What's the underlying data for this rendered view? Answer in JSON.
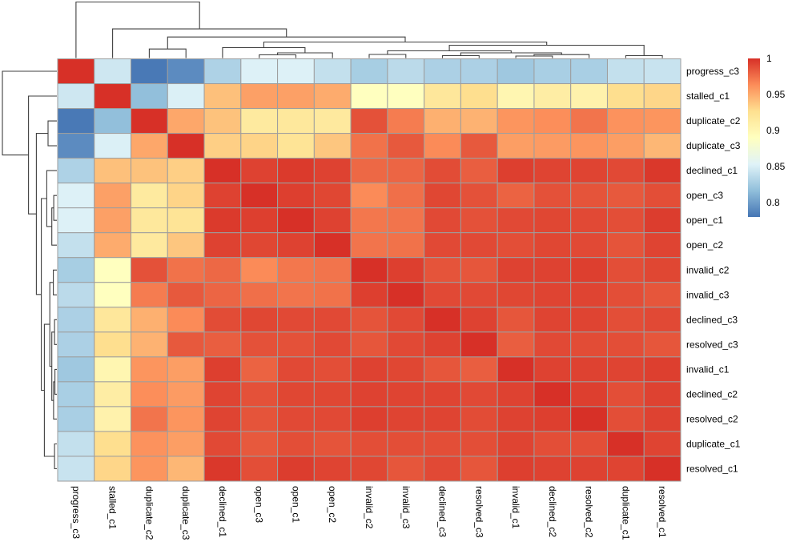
{
  "chart_data": {
    "type": "heatmap",
    "subtype": "clustered-correlation-heatmap",
    "title": "",
    "labels": [
      "progress_c3",
      "stalled_c1",
      "duplicate_c2",
      "duplicate_c3",
      "declined_c1",
      "open_c3",
      "open_c1",
      "open_c2",
      "invalid_c2",
      "invalid_c3",
      "declined_c3",
      "resolved_c3",
      "invalid_c1",
      "declined_c2",
      "resolved_c2",
      "duplicate_c1",
      "resolved_c1"
    ],
    "matrix": [
      [
        1.0,
        0.845,
        0.782,
        0.791,
        0.83,
        0.852,
        0.852,
        0.84,
        0.827,
        0.836,
        0.829,
        0.829,
        0.823,
        0.828,
        0.828,
        0.84,
        0.842
      ],
      [
        0.845,
        1.0,
        0.817,
        0.851,
        0.941,
        0.955,
        0.955,
        0.95,
        0.89,
        0.89,
        0.918,
        0.927,
        0.901,
        0.911,
        0.905,
        0.927,
        0.931
      ],
      [
        0.782,
        0.817,
        1.0,
        0.952,
        0.94,
        0.915,
        0.917,
        0.916,
        0.987,
        0.97,
        0.948,
        0.947,
        0.96,
        0.963,
        0.973,
        0.961,
        0.96
      ],
      [
        0.791,
        0.851,
        0.952,
        1.0,
        0.934,
        0.932,
        0.922,
        0.938,
        0.974,
        0.984,
        0.964,
        0.984,
        0.956,
        0.957,
        0.96,
        0.956,
        0.945
      ],
      [
        0.83,
        0.941,
        0.94,
        0.934,
        1.0,
        0.993,
        0.996,
        0.993,
        0.978,
        0.979,
        0.989,
        0.982,
        0.994,
        0.992,
        0.992,
        0.99,
        0.997
      ],
      [
        0.852,
        0.955,
        0.915,
        0.932,
        0.993,
        1.0,
        0.994,
        0.991,
        0.964,
        0.975,
        0.991,
        0.987,
        0.98,
        0.987,
        0.986,
        0.984,
        0.988
      ],
      [
        0.852,
        0.955,
        0.917,
        0.922,
        0.996,
        0.994,
        1.0,
        0.993,
        0.972,
        0.973,
        0.99,
        0.987,
        0.99,
        0.991,
        0.99,
        0.988,
        0.995
      ],
      [
        0.84,
        0.95,
        0.916,
        0.938,
        0.993,
        0.991,
        0.993,
        1.0,
        0.973,
        0.974,
        0.99,
        0.99,
        0.988,
        0.991,
        0.99,
        0.986,
        0.992
      ],
      [
        0.827,
        0.89,
        0.987,
        0.974,
        0.978,
        0.964,
        0.972,
        0.973,
        1.0,
        0.994,
        0.986,
        0.985,
        0.993,
        0.993,
        0.994,
        0.988,
        0.991
      ],
      [
        0.836,
        0.89,
        0.97,
        0.984,
        0.979,
        0.975,
        0.973,
        0.974,
        0.994,
        1.0,
        0.99,
        0.99,
        0.991,
        0.992,
        0.992,
        0.988,
        0.985
      ],
      [
        0.829,
        0.918,
        0.948,
        0.964,
        0.989,
        0.991,
        0.99,
        0.99,
        0.986,
        0.99,
        1.0,
        0.993,
        0.985,
        0.992,
        0.992,
        0.988,
        0.99
      ],
      [
        0.829,
        0.927,
        0.947,
        0.984,
        0.982,
        0.987,
        0.987,
        0.99,
        0.985,
        0.99,
        0.993,
        1.0,
        0.982,
        0.99,
        0.989,
        0.988,
        0.985
      ],
      [
        0.823,
        0.901,
        0.96,
        0.956,
        0.994,
        0.98,
        0.99,
        0.988,
        0.993,
        0.991,
        0.985,
        0.982,
        1.0,
        0.993,
        0.993,
        0.992,
        0.994
      ],
      [
        0.828,
        0.911,
        0.963,
        0.957,
        0.992,
        0.987,
        0.991,
        0.991,
        0.993,
        0.992,
        0.992,
        0.99,
        0.993,
        1.0,
        0.994,
        0.988,
        0.993
      ],
      [
        0.828,
        0.905,
        0.973,
        0.96,
        0.992,
        0.986,
        0.99,
        0.99,
        0.994,
        0.992,
        0.992,
        0.989,
        0.993,
        0.994,
        1.0,
        0.988,
        0.993
      ],
      [
        0.84,
        0.927,
        0.961,
        0.956,
        0.99,
        0.984,
        0.988,
        0.986,
        0.988,
        0.988,
        0.988,
        0.988,
        0.992,
        0.988,
        0.988,
        1.0,
        0.992
      ],
      [
        0.842,
        0.931,
        0.96,
        0.945,
        0.997,
        0.988,
        0.995,
        0.992,
        0.991,
        0.985,
        0.99,
        0.985,
        0.994,
        0.993,
        0.993,
        0.992,
        1.0
      ]
    ],
    "color_scale": {
      "name": "RdYlBu-reversed",
      "stops": [
        "#4575b4",
        "#91bfdb",
        "#e0f3f8",
        "#ffffbf",
        "#fee090",
        "#fc8d59",
        "#d73027"
      ],
      "domain_min": 0.78,
      "domain_max": 1.0,
      "legend_position": "right",
      "legend_ticks": [
        "1",
        "0.95",
        "0.9",
        "0.85",
        "0.8"
      ],
      "legend_tick_values": [
        1,
        0.95,
        0.9,
        0.85,
        0.8
      ]
    },
    "cell_border_color": "#9e9e9e",
    "dendrogram_color": "#3f3f3f",
    "linkage_tree": [
      1.0,
      0,
      [
        0.52,
        1,
        [
          0.376,
          [
            0.162,
            2,
            3
          ],
          [
            0.286,
            [
              0.186,
              4,
              [
                0.093,
                [
                  0.057,
                  5,
                  6
                ],
                7
              ]
            ],
            [
              0.229,
              [
                0.129,
                [
                  0.064,
                  8,
                  9
                ],
                [
                  0.093,
                  [
                    0.043,
                    10,
                    11
                  ],
                  [
                    0.061,
                    [
                      0.036,
                      12,
                      13
                    ],
                    14
                  ]
                ]
              ],
              [
                0.043,
                15,
                16
              ]
            ]
          ]
        ]
      ]
    ],
    "grid": false,
    "axes": {
      "x_label": "",
      "y_label": ""
    }
  }
}
